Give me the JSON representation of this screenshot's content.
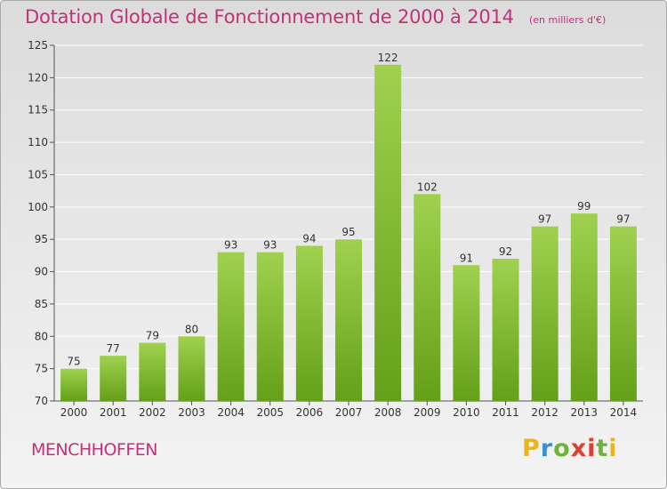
{
  "header": {
    "title": "Dotation Globale de Fonctionnement de 2000 à 2014",
    "subtitle": "(en milliers d'€)"
  },
  "footer": {
    "commune": "MENCHHOFFEN",
    "logo": "Proxiti"
  },
  "colors": {
    "title": "#c1327a",
    "bar_light": "#9fd14f",
    "bar_dark": "#64a019",
    "grid": "#ffffff"
  },
  "chart_data": {
    "type": "bar",
    "title": "Dotation Globale de Fonctionnement de 2000 à 2014",
    "subtitle": "(en milliers d'€)",
    "categories": [
      "2000",
      "2001",
      "2002",
      "2003",
      "2004",
      "2005",
      "2006",
      "2007",
      "2008",
      "2009",
      "2010",
      "2011",
      "2012",
      "2013",
      "2014"
    ],
    "values": [
      75,
      77,
      79,
      80,
      93,
      93,
      94,
      95,
      122,
      102,
      91,
      92,
      97,
      99,
      97
    ],
    "ylim": [
      70,
      125
    ],
    "yticks": [
      70,
      75,
      80,
      85,
      90,
      95,
      100,
      105,
      110,
      115,
      120,
      125
    ],
    "grid": true,
    "legend": "none"
  }
}
